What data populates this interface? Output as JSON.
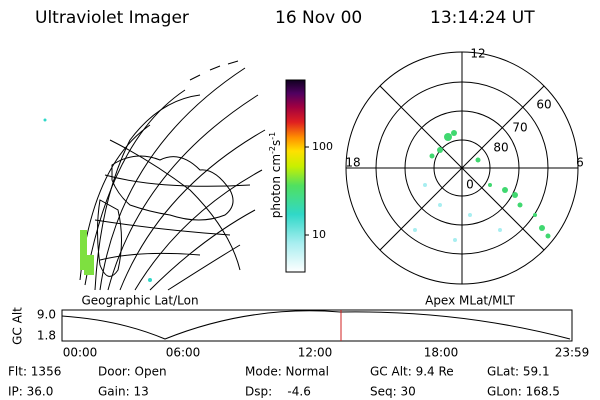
{
  "header": {
    "title": "Ultraviolet Imager",
    "date": "16 Nov 00",
    "time": "13:14:24 UT"
  },
  "colorbar": {
    "label": {
      "base": "photon cm",
      "exp1": "-2",
      "mid": "s",
      "exp2": "-1"
    },
    "ticks": [
      "100",
      "10"
    ]
  },
  "left_panel": {
    "caption": "Geographic Lat/Lon"
  },
  "right_panel": {
    "caption": "Apex MLat/MLT",
    "mlt_labels": [
      "12",
      "18",
      "6",
      "0"
    ],
    "mlat_labels": [
      "60",
      "70",
      "80"
    ]
  },
  "altitude_plot": {
    "axis_label": "GC Alt",
    "y_ticks": [
      "9.0",
      "1.8"
    ],
    "x_ticks": [
      "00:00",
      "06:00",
      "12:00",
      "18:00",
      "23:59"
    ]
  },
  "info": {
    "rows": [
      [
        "Flt: 1356",
        "Door: Open",
        "Mode: Normal",
        "GC Alt: 9.4 Re",
        "GLat: 59.1"
      ],
      [
        "IP: 36.0",
        "Gain: 13",
        "Dsp:    -4.6",
        "Seq: 30",
        "GLon: 168.5"
      ]
    ]
  }
}
